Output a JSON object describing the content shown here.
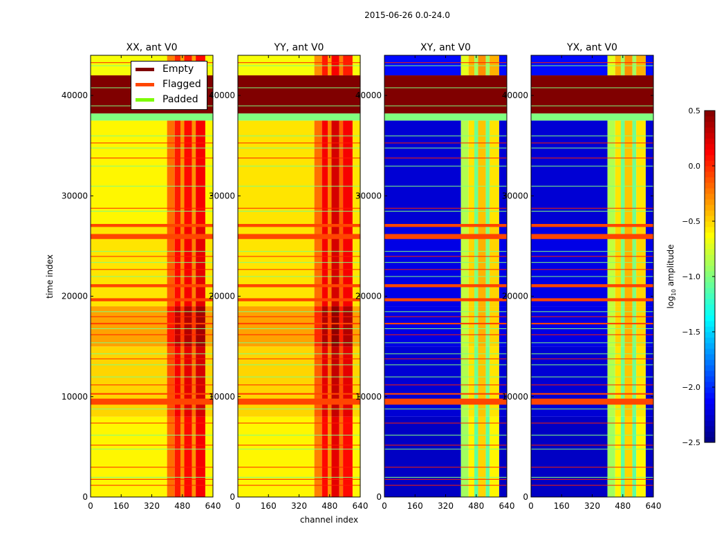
{
  "chart_data": {
    "type": "heatmap",
    "title": "2015-06-26 0.0-24.0",
    "xlabel": "channel index",
    "ylabel": "time index",
    "xlim": [
      0,
      640
    ],
    "ylim": [
      0,
      44000
    ],
    "xticks": [
      "0",
      "160",
      "320",
      "480",
      "640"
    ],
    "xtick_values": [
      0,
      160,
      320,
      480,
      640
    ],
    "yticks": [
      "0",
      "10000",
      "20000",
      "30000",
      "40000"
    ],
    "ytick_values": [
      0,
      10000,
      20000,
      30000,
      40000
    ],
    "colorbar": {
      "label_prefix": "log",
      "label_sub": "10",
      "label_suffix": " amplitude",
      "range": [
        -2.5,
        0.5
      ],
      "colormap": "jet",
      "ticks": [
        "0.5",
        "0.0",
        "−0.5",
        "−1.0",
        "−1.5",
        "−2.0",
        "−2.5"
      ],
      "tick_values": [
        0.5,
        0.0,
        -0.5,
        -1.0,
        -1.5,
        -2.0,
        -2.5
      ]
    },
    "legend": {
      "placement": "upper-right of first panel",
      "entries": [
        {
          "label": "Empty",
          "color": "#800000"
        },
        {
          "label": "Flagged",
          "color": "#ff4500"
        },
        {
          "label": "Padded",
          "color": "#7cfc00"
        }
      ]
    },
    "panels": [
      {
        "title": "XX, ant V0",
        "low": -0.6,
        "stripes": [
          [
            400,
            440,
            -0.2
          ],
          [
            440,
            470,
            0.05
          ],
          [
            470,
            490,
            -0.3
          ],
          [
            490,
            530,
            0.1
          ],
          [
            530,
            550,
            -0.3
          ],
          [
            550,
            600,
            0.15
          ],
          [
            600,
            640,
            -0.6
          ]
        ],
        "time_mod": [
          [
            0,
            8000,
            0
          ],
          [
            8000,
            15000,
            0.1
          ],
          [
            15000,
            19000,
            0.25
          ],
          [
            19000,
            27000,
            0.05
          ],
          [
            27000,
            37500,
            0.0
          ],
          [
            42000,
            44000,
            -0.05
          ]
        ]
      },
      {
        "title": "YY, ant V0",
        "low": -0.6,
        "stripes": [
          [
            400,
            440,
            -0.25
          ],
          [
            440,
            470,
            0.1
          ],
          [
            470,
            490,
            -0.3
          ],
          [
            490,
            530,
            0.2
          ],
          [
            530,
            550,
            -0.2
          ],
          [
            550,
            600,
            0.1
          ],
          [
            600,
            640,
            -0.6
          ]
        ],
        "time_mod": [
          [
            0,
            8000,
            0
          ],
          [
            8000,
            15000,
            0.1
          ],
          [
            15000,
            19000,
            0.25
          ],
          [
            19000,
            27000,
            0.05
          ],
          [
            27000,
            37500,
            0.05
          ],
          [
            42000,
            44000,
            -0.05
          ]
        ]
      },
      {
        "title": "XY, ant V0",
        "low": -2.3,
        "stripes": [
          [
            400,
            440,
            -0.9
          ],
          [
            440,
            470,
            -0.6
          ],
          [
            470,
            490,
            -1.1
          ],
          [
            490,
            530,
            -0.5
          ],
          [
            530,
            550,
            -1.1
          ],
          [
            550,
            600,
            -0.6
          ],
          [
            600,
            640,
            -2.3
          ]
        ],
        "time_mod": [
          [
            0,
            8000,
            0
          ],
          [
            8000,
            15000,
            0.05
          ],
          [
            15000,
            19000,
            0.1
          ],
          [
            19000,
            27000,
            0.1
          ],
          [
            27000,
            37500,
            0.05
          ],
          [
            42000,
            44000,
            0.2
          ]
        ]
      },
      {
        "title": "YX, ant V0",
        "low": -2.3,
        "stripes": [
          [
            400,
            440,
            -0.9
          ],
          [
            440,
            470,
            -0.6
          ],
          [
            470,
            490,
            -1.1
          ],
          [
            490,
            530,
            -0.5
          ],
          [
            530,
            550,
            -1.1
          ],
          [
            550,
            600,
            -0.6
          ],
          [
            600,
            640,
            -2.3
          ]
        ],
        "time_mod": [
          [
            0,
            8000,
            0
          ],
          [
            8000,
            15000,
            0.05
          ],
          [
            15000,
            19000,
            0.1
          ],
          [
            19000,
            27000,
            0.1
          ],
          [
            27000,
            37500,
            0.05
          ],
          [
            42000,
            44000,
            0.2
          ]
        ]
      }
    ],
    "masks": {
      "empty": [
        [
          38200,
          42000
        ]
      ],
      "flagged": [
        [
          25700,
          26200
        ],
        [
          9200,
          9800
        ],
        [
          19500,
          19800
        ],
        [
          20900,
          21200
        ],
        [
          26900,
          27200
        ],
        [
          10200,
          10350
        ],
        [
          17200,
          17350
        ]
      ],
      "padded": [
        [
          37500,
          38200
        ]
      ],
      "padded_lines": [
        2000,
        4800,
        6200,
        8800,
        12000,
        13200,
        14300,
        15400,
        16800,
        18500,
        22000,
        23400,
        24500,
        28500,
        31000,
        33000,
        34800,
        36000,
        39000,
        40800,
        43000
      ],
      "flagged_lines": [
        1200,
        1800,
        3000,
        5200,
        7400,
        11200,
        13800,
        16200,
        18000,
        22700,
        24000,
        28800,
        33800,
        35300,
        43300
      ]
    }
  }
}
